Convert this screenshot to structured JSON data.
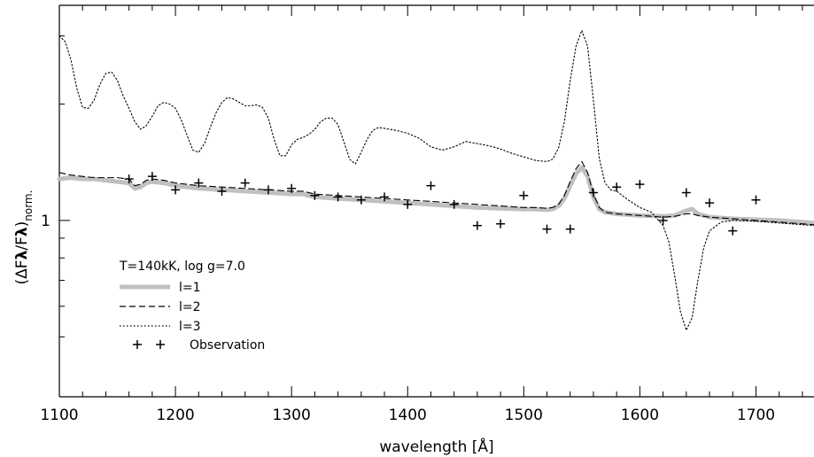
{
  "chart_data": {
    "type": "line",
    "title": "",
    "xlabel": "wavelength [Å]",
    "ylabel": "(ΔF",
    "ylabel_parts": {
      "lambda1": "λ",
      "slash": "/F",
      "lambda2": "λ",
      "close": ")",
      "subscript": "norm."
    },
    "xlim": [
      1100,
      1750
    ],
    "ylim": [
      0.35,
      3.6
    ],
    "yscale": "log",
    "x_ticks": [
      1100,
      1200,
      1300,
      1400,
      1500,
      1600,
      1700
    ],
    "y_major_ticks": [
      1
    ],
    "y_minor_ticks": [
      0.5,
      0.6,
      0.7,
      0.8,
      0.9,
      2,
      3
    ],
    "grid": false,
    "legend_position": "lower-left",
    "legend_header": "T=140kK, log g=7.0",
    "series": [
      {
        "name": "l=1",
        "style": "solid-thick",
        "color": "#c0c0c0",
        "x": [
          1100,
          1110,
          1120,
          1130,
          1140,
          1150,
          1160,
          1165,
          1170,
          1175,
          1180,
          1190,
          1200,
          1220,
          1240,
          1260,
          1280,
          1300,
          1310,
          1320,
          1340,
          1360,
          1380,
          1400,
          1420,
          1440,
          1460,
          1480,
          1500,
          1510,
          1520,
          1525,
          1530,
          1535,
          1540,
          1545,
          1550,
          1555,
          1560,
          1565,
          1570,
          1580,
          1600,
          1620,
          1630,
          1640,
          1645,
          1650,
          1660,
          1680,
          1700,
          1720,
          1750
        ],
        "y": [
          1.28,
          1.29,
          1.28,
          1.28,
          1.27,
          1.26,
          1.25,
          1.21,
          1.22,
          1.25,
          1.26,
          1.25,
          1.23,
          1.21,
          1.2,
          1.19,
          1.18,
          1.17,
          1.17,
          1.15,
          1.14,
          1.13,
          1.12,
          1.11,
          1.1,
          1.09,
          1.08,
          1.075,
          1.07,
          1.07,
          1.065,
          1.07,
          1.09,
          1.14,
          1.23,
          1.32,
          1.37,
          1.3,
          1.15,
          1.07,
          1.05,
          1.04,
          1.03,
          1.025,
          1.03,
          1.06,
          1.07,
          1.04,
          1.02,
          1.01,
          1.005,
          1.0,
          0.985
        ]
      },
      {
        "name": "l=2",
        "style": "dashed",
        "color": "#000000",
        "x": [
          1100,
          1110,
          1120,
          1130,
          1140,
          1150,
          1160,
          1165,
          1170,
          1175,
          1180,
          1190,
          1200,
          1220,
          1240,
          1260,
          1280,
          1300,
          1310,
          1320,
          1340,
          1360,
          1380,
          1400,
          1420,
          1440,
          1460,
          1480,
          1500,
          1510,
          1520,
          1525,
          1530,
          1535,
          1540,
          1545,
          1550,
          1555,
          1560,
          1565,
          1570,
          1580,
          1600,
          1620,
          1630,
          1640,
          1645,
          1650,
          1660,
          1680,
          1700,
          1720,
          1750
        ],
        "y": [
          1.33,
          1.31,
          1.3,
          1.29,
          1.29,
          1.29,
          1.28,
          1.23,
          1.24,
          1.27,
          1.28,
          1.27,
          1.25,
          1.23,
          1.22,
          1.21,
          1.2,
          1.19,
          1.19,
          1.17,
          1.16,
          1.15,
          1.14,
          1.13,
          1.12,
          1.11,
          1.1,
          1.09,
          1.08,
          1.08,
          1.075,
          1.08,
          1.1,
          1.16,
          1.26,
          1.36,
          1.42,
          1.33,
          1.17,
          1.08,
          1.05,
          1.04,
          1.03,
          1.02,
          1.025,
          1.04,
          1.04,
          1.03,
          1.02,
          1.01,
          1.0,
          0.99,
          0.975
        ]
      },
      {
        "name": "l=3",
        "style": "dotted",
        "color": "#000000",
        "x": [
          1100,
          1105,
          1110,
          1115,
          1120,
          1125,
          1130,
          1135,
          1140,
          1145,
          1150,
          1155,
          1160,
          1165,
          1170,
          1175,
          1180,
          1185,
          1190,
          1195,
          1200,
          1205,
          1210,
          1215,
          1220,
          1225,
          1230,
          1235,
          1240,
          1245,
          1250,
          1255,
          1260,
          1265,
          1270,
          1275,
          1280,
          1285,
          1290,
          1295,
          1300,
          1305,
          1310,
          1315,
          1320,
          1325,
          1330,
          1335,
          1340,
          1345,
          1350,
          1355,
          1360,
          1365,
          1370,
          1375,
          1380,
          1390,
          1400,
          1410,
          1420,
          1430,
          1440,
          1450,
          1460,
          1470,
          1480,
          1490,
          1500,
          1510,
          1520,
          1525,
          1530,
          1535,
          1540,
          1545,
          1550,
          1555,
          1560,
          1565,
          1570,
          1575,
          1580,
          1590,
          1600,
          1610,
          1620,
          1625,
          1630,
          1635,
          1640,
          1645,
          1650,
          1655,
          1660,
          1670,
          1680,
          1700,
          1720,
          1750
        ],
        "y": [
          3.0,
          2.9,
          2.6,
          2.2,
          1.96,
          1.95,
          2.05,
          2.25,
          2.4,
          2.42,
          2.3,
          2.1,
          1.95,
          1.8,
          1.72,
          1.76,
          1.86,
          1.98,
          2.02,
          2.0,
          1.95,
          1.82,
          1.66,
          1.52,
          1.5,
          1.58,
          1.74,
          1.9,
          2.02,
          2.08,
          2.06,
          2.02,
          1.98,
          1.98,
          1.99,
          1.96,
          1.84,
          1.62,
          1.47,
          1.47,
          1.57,
          1.62,
          1.64,
          1.67,
          1.72,
          1.8,
          1.84,
          1.84,
          1.77,
          1.6,
          1.44,
          1.4,
          1.5,
          1.62,
          1.71,
          1.74,
          1.73,
          1.71,
          1.68,
          1.63,
          1.55,
          1.52,
          1.55,
          1.6,
          1.58,
          1.56,
          1.53,
          1.49,
          1.46,
          1.43,
          1.42,
          1.44,
          1.54,
          1.8,
          2.3,
          2.82,
          3.1,
          2.82,
          2.05,
          1.45,
          1.25,
          1.2,
          1.19,
          1.13,
          1.08,
          1.05,
          0.97,
          0.88,
          0.72,
          0.58,
          0.52,
          0.56,
          0.7,
          0.85,
          0.94,
          0.99,
          1.0,
          0.995,
          0.985,
          0.97
        ]
      }
    ],
    "observations": {
      "name": "Observation",
      "marker": "+",
      "x": [
        1160,
        1180,
        1200,
        1220,
        1240,
        1260,
        1280,
        1300,
        1320,
        1340,
        1360,
        1380,
        1400,
        1420,
        1440,
        1460,
        1480,
        1500,
        1520,
        1540,
        1560,
        1580,
        1600,
        1620,
        1640,
        1660,
        1680,
        1700
      ],
      "y": [
        1.28,
        1.3,
        1.2,
        1.25,
        1.19,
        1.25,
        1.2,
        1.21,
        1.16,
        1.15,
        1.13,
        1.15,
        1.1,
        1.23,
        1.1,
        0.97,
        0.98,
        1.16,
        0.95,
        0.95,
        1.18,
        1.22,
        1.24,
        1.0,
        1.18,
        1.11,
        0.94,
        1.13
      ]
    }
  }
}
